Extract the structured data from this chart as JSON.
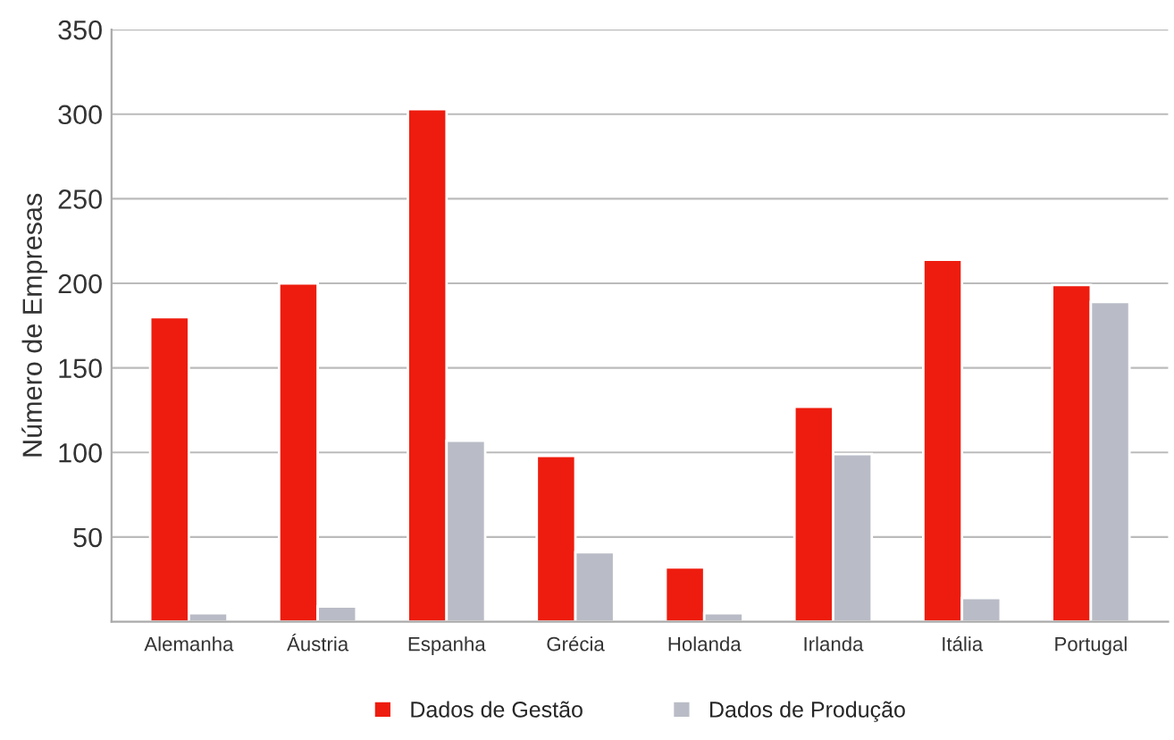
{
  "chart_data": {
    "type": "bar",
    "ylabel": "Número de Empresas",
    "categories": [
      "Alemanha",
      "Áustria",
      "Espanha",
      "Grécia",
      "Holanda",
      "Irlanda",
      "Itália",
      "Portugal"
    ],
    "series": [
      {
        "name": "Dados de Gestão",
        "color": "#ee1c0e",
        "values": [
          180,
          200,
          303,
          98,
          32,
          127,
          214,
          199
        ]
      },
      {
        "name": "Dados de Produção",
        "color": "#b9bcc6",
        "values": [
          5,
          9,
          107,
          41,
          5,
          99,
          14,
          189
        ]
      }
    ],
    "ylim": [
      0,
      350
    ],
    "yticks": [
      50,
      100,
      150,
      200,
      250,
      300,
      350
    ],
    "grid": "y",
    "legend": "bottom"
  }
}
